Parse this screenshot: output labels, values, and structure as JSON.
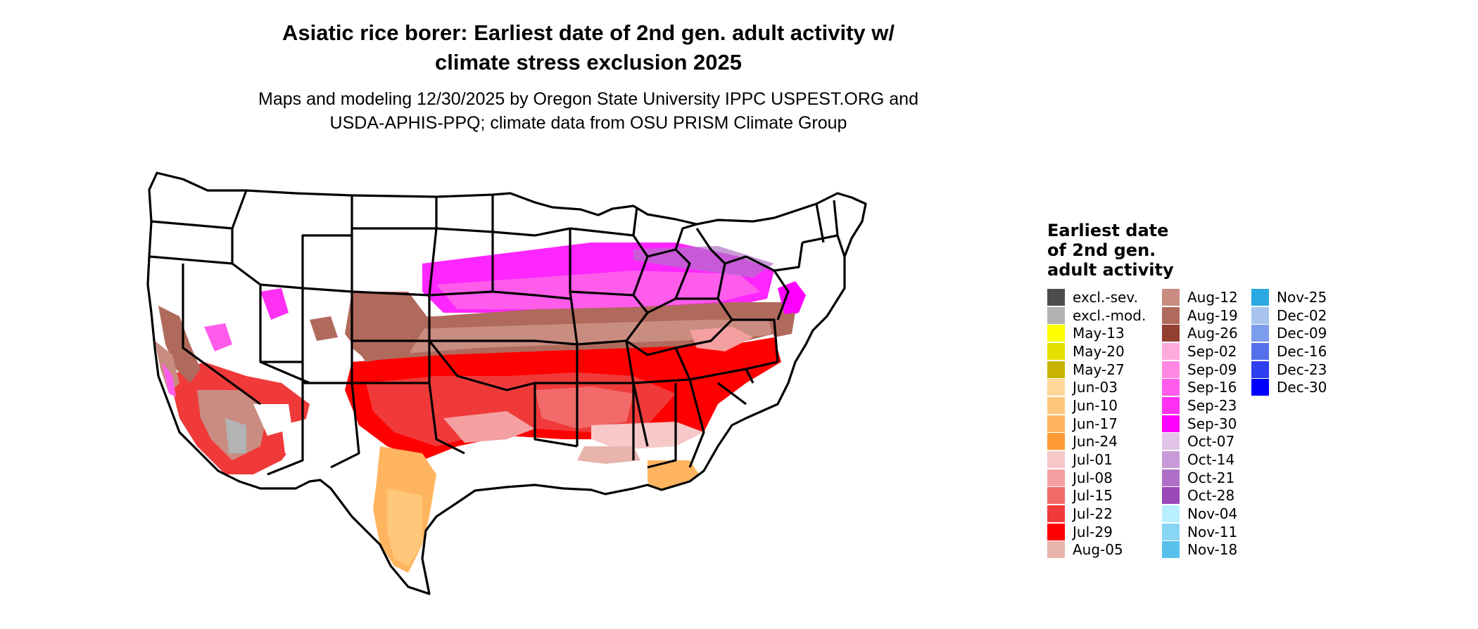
{
  "title_line1": "Asiatic rice borer: Earliest date of 2nd gen. adult activity w/",
  "title_line2": "climate stress exclusion 2025",
  "subtitle_line1": "Maps and modeling 12/30/2025 by Oregon State University IPPC USPEST.ORG and",
  "subtitle_line2": "USDA-APHIS-PPQ; climate data from OSU PRISM Climate Group",
  "legend": {
    "title_line1": "Earliest date",
    "title_line2": "of 2nd gen.",
    "title_line3": "adult activity",
    "columns": [
      [
        {
          "label": "excl.-sev.",
          "color": "#4d4d4d"
        },
        {
          "label": "excl.-mod.",
          "color": "#b3b3b3"
        },
        {
          "label": "May-13",
          "color": "#ffff00"
        },
        {
          "label": "May-20",
          "color": "#e5e000"
        },
        {
          "label": "May-27",
          "color": "#c8b400"
        },
        {
          "label": "Jun-03",
          "color": "#ffd89a"
        },
        {
          "label": "Jun-10",
          "color": "#ffc77a"
        },
        {
          "label": "Jun-17",
          "color": "#ffb560"
        },
        {
          "label": "Jun-24",
          "color": "#ff9a35"
        },
        {
          "label": "Jul-01",
          "color": "#f7c8c8"
        },
        {
          "label": "Jul-08",
          "color": "#f4a0a0"
        },
        {
          "label": "Jul-15",
          "color": "#f26a6a"
        },
        {
          "label": "Jul-22",
          "color": "#f03a3a"
        },
        {
          "label": "Jul-29",
          "color": "#ff0000"
        },
        {
          "label": "Aug-05",
          "color": "#e8b4ac"
        }
      ],
      [
        {
          "label": "Aug-12",
          "color": "#c98c80"
        },
        {
          "label": "Aug-19",
          "color": "#b06a5c"
        },
        {
          "label": "Aug-26",
          "color": "#944030"
        },
        {
          "label": "Sep-02",
          "color": "#ffaadd"
        },
        {
          "label": "Sep-09",
          "color": "#ff88e4"
        },
        {
          "label": "Sep-16",
          "color": "#ff5cec"
        },
        {
          "label": "Sep-23",
          "color": "#ff30f4"
        },
        {
          "label": "Sep-30",
          "color": "#ff00ff"
        },
        {
          "label": "Oct-07",
          "color": "#e2c4e8"
        },
        {
          "label": "Oct-14",
          "color": "#c89ad8"
        },
        {
          "label": "Oct-21",
          "color": "#b070c8"
        },
        {
          "label": "Oct-28",
          "color": "#9a48b8"
        },
        {
          "label": "Nov-04",
          "color": "#b8eeff"
        },
        {
          "label": "Nov-11",
          "color": "#88d6f4"
        },
        {
          "label": "Nov-18",
          "color": "#58c0ec"
        }
      ],
      [
        {
          "label": "Nov-25",
          "color": "#2aa8e0"
        },
        {
          "label": "Dec-02",
          "color": "#a8c4ec"
        },
        {
          "label": "Dec-09",
          "color": "#7c9cec"
        },
        {
          "label": "Dec-16",
          "color": "#5670ec"
        },
        {
          "label": "Dec-23",
          "color": "#2e40f0"
        },
        {
          "label": "Dec-30",
          "color": "#0000ff"
        }
      ]
    ]
  }
}
